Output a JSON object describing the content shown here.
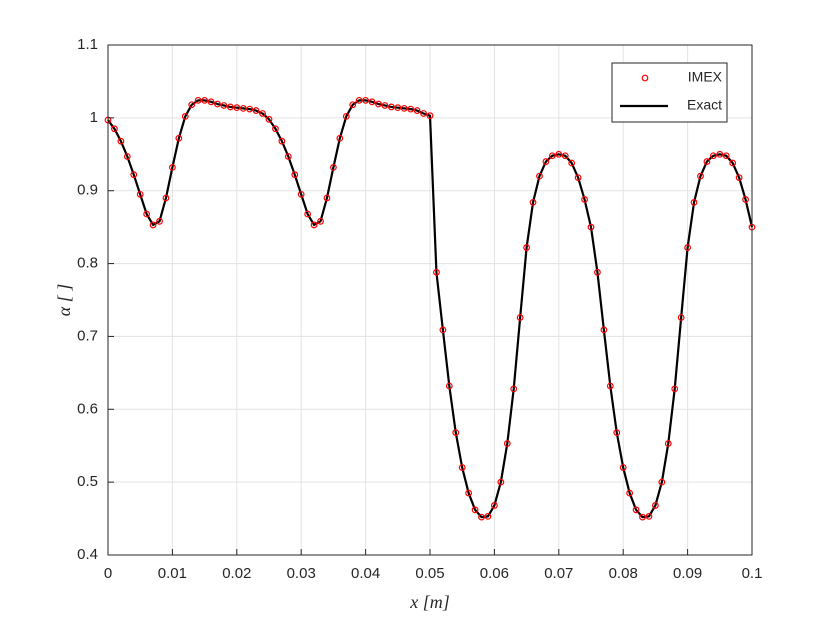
{
  "chart_data": {
    "type": "line",
    "xlabel": "x [m]",
    "ylabel": "α [ ]",
    "x": [
      0,
      0.001,
      0.002,
      0.003,
      0.004,
      0.005,
      0.006,
      0.007,
      0.008,
      0.009,
      0.01,
      0.011,
      0.012,
      0.013,
      0.014,
      0.015,
      0.016,
      0.017,
      0.018,
      0.019,
      0.02,
      0.021,
      0.022,
      0.023,
      0.024,
      0.025,
      0.026,
      0.027,
      0.028,
      0.029,
      0.03,
      0.031,
      0.032,
      0.033,
      0.034,
      0.035,
      0.036,
      0.037,
      0.038,
      0.039,
      0.04,
      0.041,
      0.042,
      0.043,
      0.044,
      0.045,
      0.046,
      0.047,
      0.048,
      0.049,
      0.05,
      0.051,
      0.052,
      0.053,
      0.054,
      0.055,
      0.056,
      0.057,
      0.058,
      0.059,
      0.06,
      0.061,
      0.062,
      0.063,
      0.064,
      0.065,
      0.066,
      0.067,
      0.068,
      0.069,
      0.07,
      0.071,
      0.072,
      0.073,
      0.074,
      0.075,
      0.076,
      0.077,
      0.078,
      0.079,
      0.08,
      0.081,
      0.082,
      0.083,
      0.084,
      0.085,
      0.086,
      0.087,
      0.088,
      0.089,
      0.09,
      0.091,
      0.092,
      0.093,
      0.094,
      0.095,
      0.096,
      0.097,
      0.098,
      0.099,
      0.1
    ],
    "series": [
      {
        "name": "IMEX",
        "color": "#ff0000",
        "marker": "circle",
        "values": [
          0.997,
          0.985,
          0.968,
          0.947,
          0.922,
          0.895,
          0.868,
          0.853,
          0.858,
          0.89,
          0.932,
          0.972,
          1.002,
          1.018,
          1.024,
          1.024,
          1.022,
          1.019,
          1.017,
          1.015,
          1.014,
          1.013,
          1.012,
          1.01,
          1.006,
          0.998,
          0.985,
          0.968,
          0.947,
          0.922,
          0.895,
          0.868,
          0.853,
          0.858,
          0.89,
          0.932,
          0.972,
          1.002,
          1.018,
          1.024,
          1.024,
          1.022,
          1.019,
          1.017,
          1.015,
          1.014,
          1.013,
          1.012,
          1.01,
          1.006,
          1.003,
          0.788,
          0.709,
          0.632,
          0.568,
          0.52,
          0.485,
          0.462,
          0.452,
          0.453,
          0.468,
          0.5,
          0.553,
          0.628,
          0.726,
          0.822,
          0.884,
          0.92,
          0.94,
          0.948,
          0.95,
          0.948,
          0.938,
          0.918,
          0.888,
          0.85,
          0.788,
          0.709,
          0.632,
          0.568,
          0.52,
          0.485,
          0.462,
          0.452,
          0.453,
          0.468,
          0.5,
          0.553,
          0.628,
          0.726,
          0.822,
          0.884,
          0.92,
          0.94,
          0.948,
          0.95,
          0.948,
          0.938,
          0.918,
          0.888,
          0.85
        ]
      },
      {
        "name": "Exact",
        "color": "#000000",
        "marker": "none",
        "values": [
          0.997,
          0.985,
          0.968,
          0.947,
          0.922,
          0.895,
          0.868,
          0.853,
          0.858,
          0.89,
          0.932,
          0.972,
          1.002,
          1.018,
          1.024,
          1.024,
          1.022,
          1.019,
          1.017,
          1.015,
          1.014,
          1.013,
          1.012,
          1.01,
          1.006,
          0.998,
          0.985,
          0.968,
          0.947,
          0.922,
          0.895,
          0.868,
          0.853,
          0.858,
          0.89,
          0.932,
          0.972,
          1.002,
          1.018,
          1.024,
          1.024,
          1.022,
          1.019,
          1.017,
          1.015,
          1.014,
          1.013,
          1.012,
          1.01,
          1.006,
          1.003,
          0.788,
          0.709,
          0.632,
          0.568,
          0.52,
          0.485,
          0.462,
          0.452,
          0.453,
          0.468,
          0.5,
          0.553,
          0.628,
          0.726,
          0.822,
          0.884,
          0.92,
          0.94,
          0.948,
          0.95,
          0.948,
          0.938,
          0.918,
          0.888,
          0.85,
          0.788,
          0.709,
          0.632,
          0.568,
          0.52,
          0.485,
          0.462,
          0.452,
          0.453,
          0.468,
          0.5,
          0.553,
          0.628,
          0.726,
          0.822,
          0.884,
          0.92,
          0.94,
          0.948,
          0.95,
          0.948,
          0.938,
          0.918,
          0.888,
          0.85
        ]
      }
    ],
    "xlim": [
      0,
      0.1
    ],
    "xticks": [
      0,
      0.01,
      0.02,
      0.03,
      0.04,
      0.05,
      0.06,
      0.07,
      0.08,
      0.09,
      0.1
    ],
    "ylim": [
      0.4,
      1.1
    ],
    "yticks": [
      0.4,
      0.5,
      0.6,
      0.7,
      0.8,
      0.9,
      1,
      1.1
    ],
    "grid": true,
    "legend": "upper-right"
  }
}
